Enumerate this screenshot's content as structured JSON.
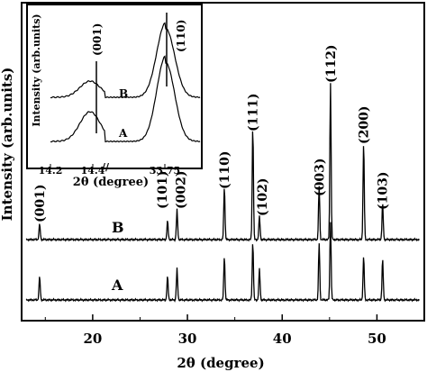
{
  "chart_data": [
    {
      "type": "line",
      "xlabel": "2θ (degree)",
      "ylabel": "Intensity (arb.units)",
      "xlim": [
        12.5,
        55
      ],
      "x_ticks": [
        20,
        30,
        40,
        50
      ],
      "grid": false,
      "series": [
        {
          "name": "B",
          "peaks": [
            {
              "x": 14.4,
              "label": "(001)",
              "height": 0.1
            },
            {
              "x": 27.9,
              "label": "(101)",
              "height": 0.12
            },
            {
              "x": 28.9,
              "label": "(002)",
              "height": 0.19
            },
            {
              "x": 33.9,
              "label": "(110)",
              "height": 0.34
            },
            {
              "x": 36.9,
              "label": "(111)",
              "height": 0.72
            },
            {
              "x": 37.6,
              "label": "(102)",
              "height": 0.15
            },
            {
              "x": 43.9,
              "label": "(003)",
              "height": 0.34
            },
            {
              "x": 45.1,
              "label": "(112)",
              "height": 1.0
            },
            {
              "x": 48.6,
              "label": "(200)",
              "height": 0.62
            },
            {
              "x": 50.6,
              "label": "(103)",
              "height": 0.23
            }
          ]
        },
        {
          "name": "A",
          "peaks": [
            {
              "x": 14.4,
              "height": 0.15
            },
            {
              "x": 27.9,
              "height": 0.15
            },
            {
              "x": 28.9,
              "height": 0.2
            },
            {
              "x": 33.9,
              "height": 0.28
            },
            {
              "x": 36.9,
              "height": 0.37
            },
            {
              "x": 37.6,
              "height": 0.2
            },
            {
              "x": 43.9,
              "height": 0.36
            },
            {
              "x": 45.1,
              "height": 0.5
            },
            {
              "x": 48.6,
              "height": 0.28
            },
            {
              "x": 50.6,
              "height": 0.26
            }
          ]
        }
      ]
    },
    {
      "type": "line",
      "xlabel": "2θ (degree)",
      "ylabel": "Intensity (arb.units)",
      "x_tick_labels": [
        "14.2",
        "14.4",
        "33.75"
      ],
      "axis_break": "//",
      "annotations": [
        "(001)",
        "(110)"
      ],
      "series": [
        {
          "name": "B",
          "peaks": [
            {
              "x": 14.32,
              "label": "(001)"
            },
            {
              "x": 33.76,
              "label": "(110)"
            }
          ]
        },
        {
          "name": "A",
          "peaks": [
            {
              "x": 14.32,
              "label": "(001)"
            },
            {
              "x": 33.76,
              "label": "(110)"
            }
          ]
        }
      ]
    }
  ]
}
